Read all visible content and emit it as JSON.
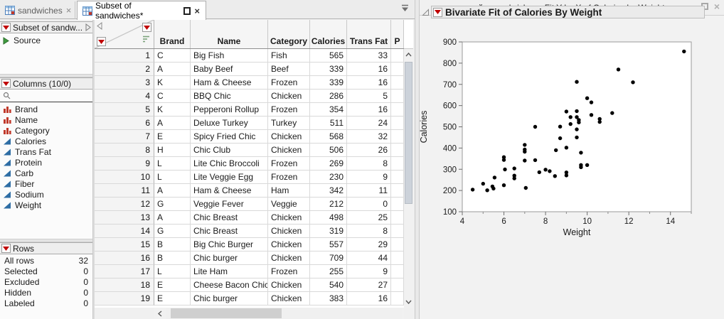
{
  "tab_bar": {
    "tabs": [
      {
        "label": "sandwiches",
        "active": false
      },
      {
        "label": "Subset of sandwiches*",
        "active": true
      }
    ],
    "close_glyph": "×"
  },
  "sidebar": {
    "table_panel": {
      "title": "Subset of sandw...",
      "source_label": "Source"
    },
    "columns_panel": {
      "title": "Columns (10/0)",
      "columns": [
        {
          "label": "Brand",
          "type": "nominal"
        },
        {
          "label": "Name",
          "type": "nominal"
        },
        {
          "label": "Category",
          "type": "nominal"
        },
        {
          "label": "Calories",
          "type": "continuous"
        },
        {
          "label": "Trans Fat",
          "type": "continuous"
        },
        {
          "label": "Protein",
          "type": "continuous"
        },
        {
          "label": "Carb",
          "type": "continuous"
        },
        {
          "label": "Fiber",
          "type": "continuous"
        },
        {
          "label": "Sodium",
          "type": "continuous"
        },
        {
          "label": "Weight",
          "type": "continuous"
        }
      ]
    },
    "rows_panel": {
      "title": "Rows",
      "stats": [
        {
          "label": "All rows",
          "value": "32"
        },
        {
          "label": "Selected",
          "value": "0"
        },
        {
          "label": "Excluded",
          "value": "0"
        },
        {
          "label": "Hidden",
          "value": "0"
        },
        {
          "label": "Labeled",
          "value": "0"
        }
      ]
    }
  },
  "table": {
    "headers": [
      "Brand",
      "Name",
      "Category",
      "Calories",
      "Trans Fat",
      "P"
    ],
    "rows": [
      {
        "n": "1",
        "cells": [
          "C",
          "Big Fish",
          "Fish",
          "565",
          "33",
          ""
        ]
      },
      {
        "n": "2",
        "cells": [
          "A",
          "Baby Beef",
          "Beef",
          "339",
          "16",
          ""
        ]
      },
      {
        "n": "3",
        "cells": [
          "K",
          "Ham & Cheese",
          "Frozen",
          "339",
          "16",
          ""
        ]
      },
      {
        "n": "4",
        "cells": [
          "C",
          "BBQ Chic",
          "Chicken",
          "286",
          "5",
          ""
        ]
      },
      {
        "n": "5",
        "cells": [
          "K",
          "Pepperoni Rollup",
          "Frozen",
          "354",
          "16",
          ""
        ]
      },
      {
        "n": "6",
        "cells": [
          "A",
          "Deluxe Turkey",
          "Turkey",
          "511",
          "24",
          ""
        ]
      },
      {
        "n": "7",
        "cells": [
          "E",
          "Spicy Fried Chic",
          "Chicken",
          "568",
          "32",
          ""
        ]
      },
      {
        "n": "8",
        "cells": [
          "H",
          "Chic Club",
          "Chicken",
          "506",
          "26",
          ""
        ]
      },
      {
        "n": "9",
        "cells": [
          "L",
          "Lite Chic Broccoli",
          "Frozen",
          "269",
          "8",
          ""
        ]
      },
      {
        "n": "10",
        "cells": [
          "L",
          "Lite Veggie Egg",
          "Frozen",
          "230",
          "9",
          ""
        ]
      },
      {
        "n": "11",
        "cells": [
          "A",
          "Ham & Cheese",
          "Ham",
          "342",
          "11",
          ""
        ]
      },
      {
        "n": "12",
        "cells": [
          "G",
          "Veggie Fever",
          "Veggie",
          "212",
          "0",
          ""
        ]
      },
      {
        "n": "13",
        "cells": [
          "A",
          "Chic Breast",
          "Chicken",
          "498",
          "25",
          ""
        ]
      },
      {
        "n": "14",
        "cells": [
          "G",
          "Chic Breast",
          "Chicken",
          "319",
          "8",
          ""
        ]
      },
      {
        "n": "15",
        "cells": [
          "B",
          "Big Chic Burger",
          "Chicken",
          "557",
          "29",
          ""
        ]
      },
      {
        "n": "16",
        "cells": [
          "B",
          "Chic burger",
          "Chicken",
          "709",
          "44",
          ""
        ]
      },
      {
        "n": "17",
        "cells": [
          "L",
          "Lite Ham",
          "Frozen",
          "255",
          "9",
          ""
        ]
      },
      {
        "n": "18",
        "cells": [
          "E",
          "Cheese Bacon Chic",
          "Chicken",
          "540",
          "27",
          ""
        ]
      },
      {
        "n": "19",
        "cells": [
          "E",
          "Chic burger",
          "Chicken",
          "383",
          "16",
          ""
        ]
      }
    ]
  },
  "fit_window": {
    "title": "sandwiches - Fit Y by X of Calories by Weight",
    "report_title": "Bivariate Fit of Calories By Weight"
  },
  "chart_data": {
    "type": "scatter",
    "title": "Bivariate Fit of Calories By Weight",
    "xlabel": "Weight",
    "ylabel": "Calories",
    "xlim": [
      4,
      15
    ],
    "ylim": [
      100,
      900
    ],
    "xticks": [
      4,
      6,
      8,
      10,
      12,
      14
    ],
    "xticks_minor": [
      5,
      7,
      9,
      11,
      13,
      15
    ],
    "yticks": [
      100,
      200,
      300,
      400,
      500,
      600,
      700,
      800,
      900
    ],
    "grid": false,
    "marker_color": "#000000",
    "points": [
      [
        4.5,
        204
      ],
      [
        5.0,
        232
      ],
      [
        5.2,
        201
      ],
      [
        5.45,
        219
      ],
      [
        5.5,
        209
      ],
      [
        5.55,
        261
      ],
      [
        6.0,
        357
      ],
      [
        6.0,
        344
      ],
      [
        6.05,
        299
      ],
      [
        6.0,
        225
      ],
      [
        6.5,
        304
      ],
      [
        6.5,
        270
      ],
      [
        6.5,
        257
      ],
      [
        7.0,
        415
      ],
      [
        7.0,
        393
      ],
      [
        7.0,
        383
      ],
      [
        7.0,
        341
      ],
      [
        7.05,
        212
      ],
      [
        7.5,
        500
      ],
      [
        7.5,
        343
      ],
      [
        7.7,
        286
      ],
      [
        8.0,
        298
      ],
      [
        8.2,
        291
      ],
      [
        8.5,
        390
      ],
      [
        8.45,
        268
      ],
      [
        8.7,
        501
      ],
      [
        8.7,
        446
      ],
      [
        9.0,
        572
      ],
      [
        9.0,
        402
      ],
      [
        9.0,
        285
      ],
      [
        9.0,
        271
      ],
      [
        9.2,
        546
      ],
      [
        9.2,
        513
      ],
      [
        9.5,
        712
      ],
      [
        9.5,
        574
      ],
      [
        9.5,
        546
      ],
      [
        9.5,
        488
      ],
      [
        9.5,
        450
      ],
      [
        9.6,
        532
      ],
      [
        9.6,
        521
      ],
      [
        9.7,
        378
      ],
      [
        9.7,
        320
      ],
      [
        9.7,
        310
      ],
      [
        10.0,
        635
      ],
      [
        10.0,
        320
      ],
      [
        10.2,
        615
      ],
      [
        10.2,
        556
      ],
      [
        10.6,
        537
      ],
      [
        10.6,
        523
      ],
      [
        11.2,
        565
      ],
      [
        11.5,
        770
      ],
      [
        12.2,
        710
      ],
      [
        14.65,
        855
      ]
    ]
  },
  "colors": {
    "accent_red": "#c00000",
    "nominal_icon": "#c0392b",
    "continuous_icon": "#2e6da4",
    "source_green": "#3f9b3f",
    "point_black": "#000000"
  }
}
